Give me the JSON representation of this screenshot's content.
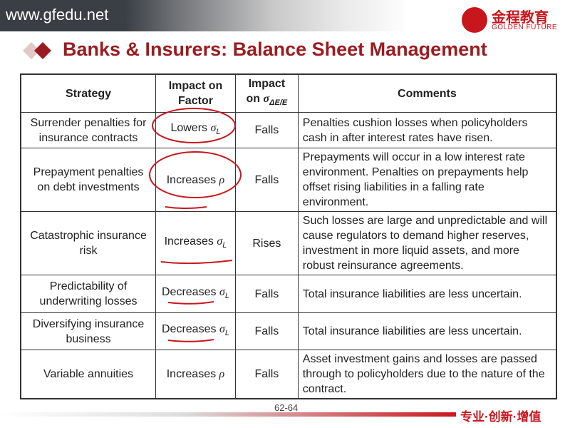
{
  "header": {
    "url": "www.gfedu.net",
    "logo_cn": "金程教育",
    "logo_en": "GOLDEN FUTURE"
  },
  "title": "Banks & Insurers: Balance Sheet Management",
  "table": {
    "headers": [
      {
        "text": "Strategy"
      },
      {
        "text": "Impact on Factor"
      },
      {
        "text": "Impact on",
        "symbol": "σ",
        "sub": "ΔE/E"
      },
      {
        "text": "Comments"
      }
    ],
    "rows": [
      [
        "Surrender penalties for insurance contracts",
        {
          "text": "Lowers",
          "symbol": "σ",
          "sub": "L"
        },
        "Falls",
        "Penalties cushion losses when policyholders cash in after interest rates have risen."
      ],
      [
        "Prepayment penalties on debt investments",
        {
          "text": "Increases",
          "symbol": "ρ"
        },
        "Falls",
        "Prepayments will occur in a low interest rate environment. Penalties on prepayments help offset rising liabilities in a falling rate environment."
      ],
      [
        "Catastrophic insurance risk",
        {
          "text": "Increases",
          "symbol": "σ",
          "sub": "L"
        },
        "Rises",
        "Such losses are large and unpredictable and will cause regulators to demand higher reserves, investment in more liquid assets, and more robust reinsurance agreements."
      ],
      [
        "Predictability of underwriting losses",
        {
          "text": "Decreases",
          "symbol": "σ",
          "sub": "L"
        },
        "Falls",
        "Total insurance liabilities are less uncertain."
      ],
      [
        "Diversifying insurance business",
        {
          "text": "Decreases",
          "symbol": "σ",
          "sub": "L"
        },
        "Falls",
        "Total insurance liabilities are less uncertain."
      ],
      [
        "Variable annuities",
        {
          "text": "Increases",
          "symbol": "ρ"
        },
        "Falls",
        "Asset investment gains and losses are passed through to policyholders due to the nature of the contract."
      ]
    ]
  },
  "footer": {
    "page": "62-64",
    "slogan": "专业·创新·增值"
  }
}
